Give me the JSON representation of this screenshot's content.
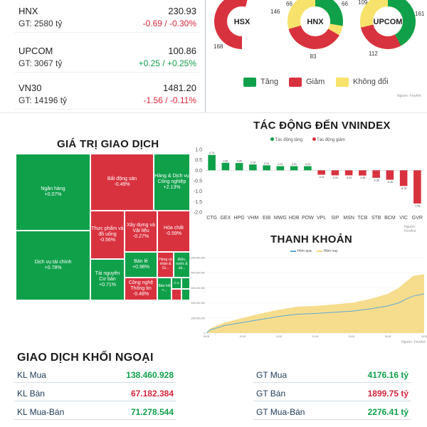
{
  "indices": [
    {
      "name": "HNX",
      "gt": "GT: 2580 tỷ",
      "value": "230.93",
      "change": "-0.69 / -0.30%",
      "dir": "down"
    },
    {
      "name": "UPCOM",
      "gt": "GT: 3067 tỷ",
      "value": "100.86",
      "change": "+0.25 / +0.25%",
      "dir": "up"
    },
    {
      "name": "VN30",
      "gt": "GT: 14196 tỷ",
      "value": "1481.20",
      "change": "-1.56 / -0.11%",
      "dir": "down"
    }
  ],
  "breadth": {
    "exchanges": [
      {
        "label": "HSX",
        "tang": "146",
        "giam": "168",
        "khong_doi": ""
      },
      {
        "label": "HNX",
        "tang": "66",
        "giam": "83",
        "khong_doi": "66"
      },
      {
        "label": "UPCOM",
        "tang": "161",
        "giam": "112",
        "khong_doi": "109"
      }
    ],
    "legend": [
      {
        "label": "Tăng",
        "color": "#10a04a"
      },
      {
        "label": "Giảm",
        "color": "#d9323f"
      },
      {
        "label": "Không đổi",
        "color": "#f7e36b"
      }
    ],
    "source": "Nguồn: FireAnt"
  },
  "impact": {
    "title": "TÁC ĐỘNG ĐẾN VNINDEX",
    "legend_up": "Tác động tăng",
    "legend_down": "Tác động giảm",
    "source": "Nguồn: FireAnt"
  },
  "treemap": {
    "title": "GIÁ TRỊ GIAO DỊCH",
    "cells": [
      {
        "name": "Ngân hàng",
        "change": "+0.07%"
      },
      {
        "name": "Dịch vụ tài chính",
        "change": "+0.78%"
      },
      {
        "name": "Bất động sản",
        "change": "-0.49%"
      },
      {
        "name": "Hàng & Dịch vụ Công nghiệp",
        "change": "+2.13%"
      },
      {
        "name": "Thực phẩm và đồ uống",
        "change": "-0.56%"
      },
      {
        "name": "Xây dựng và Vật liệu",
        "change": "-0.27%"
      },
      {
        "name": "Hóa chất",
        "change": "-0.59%"
      },
      {
        "name": "Tài nguyên Cơ bản",
        "change": "+0.71%"
      },
      {
        "name": "Bán lẻ",
        "change": "+0.98%"
      },
      {
        "name": "Hàng cá nhân & Gi...",
        "change": ""
      },
      {
        "name": "Điện, nước & xă...",
        "change": ""
      },
      {
        "name": "Công nghệ Thông tin",
        "change": "-0.48%"
      },
      {
        "name": "Bảo hiể",
        "change": "+..."
      },
      {
        "name": "Ô tô",
        "change": "+..."
      }
    ]
  },
  "liquidity": {
    "title": "THANH KHOẢN",
    "legend_prev": "Hôm qua",
    "legend_today": "Hôm nay",
    "source": "Nguồn: FireAnt"
  },
  "foreign": {
    "title": "GIAO DỊCH KHỐI NGOẠI",
    "rows_left": [
      {
        "label": "KL Mua",
        "value": "138.460.928",
        "color": "#10a04a"
      },
      {
        "label": "KL Bán",
        "value": "67.182.384",
        "color": "#d7263d"
      },
      {
        "label": "KL Mua-Bán",
        "value": "71.278.544",
        "color": "#10a04a"
      }
    ],
    "rows_right": [
      {
        "label": "GT Mua",
        "value": "4176.16 tỷ",
        "color": "#10a04a"
      },
      {
        "label": "GT Bán",
        "value": "1899.75 tỷ",
        "color": "#d7263d"
      },
      {
        "label": "GT Mua-Bán",
        "value": "2276.41 tỷ",
        "color": "#10a04a"
      }
    ]
  },
  "chart_data": [
    {
      "type": "bar",
      "title": "TÁC ĐỘNG ĐẾN VNINDEX",
      "categories": [
        "CTG",
        "GEX",
        "HPG",
        "VHM",
        "EIB",
        "MWG",
        "HDB",
        "POW",
        "VPL",
        "SIP",
        "MSN",
        "TCB",
        "STB",
        "BCM",
        "VIC",
        "GVR"
      ],
      "series": [
        {
          "name": "Tác động tăng/giảm",
          "values": [
            0.74,
            0.36,
            0.35,
            0.28,
            0.24,
            0.2,
            0.2,
            0.2,
            -0.21,
            -0.24,
            -0.24,
            -0.25,
            -0.36,
            -0.45,
            -0.75,
            -1.59
          ]
        }
      ],
      "ylim": [
        -2.0,
        1.0
      ],
      "yticks": [
        "1.0",
        "0.5",
        "0.0",
        "-0.5",
        "-1.0",
        "-1.5",
        "-2.0"
      ],
      "colors": {
        "up": "#10a04a",
        "down": "#d9323f"
      },
      "legend": "top-center",
      "grid": false
    },
    {
      "type": "area",
      "title": "THANH KHOẢN",
      "xticks": [
        "09:00",
        "10:00",
        "11:00",
        "12:00",
        "13:00",
        "14:00",
        "15:00"
      ],
      "yticks": [
        "1,000,000,000",
        "800,000,000",
        "600,000,000",
        "400,000,000",
        "200,000,000",
        "0"
      ],
      "x_hours": [
        9.0,
        9.1,
        9.3,
        9.5,
        10.0,
        10.5,
        11.0,
        11.5,
        12.0,
        13.0,
        13.5,
        14.0,
        14.3,
        14.5,
        14.7,
        15.0
      ],
      "series": [
        {
          "name": "Hôm nay",
          "values": [
            0,
            60000000,
            100000000,
            140000000,
            200000000,
            260000000,
            310000000,
            350000000,
            360000000,
            400000000,
            450000000,
            520000000,
            600000000,
            680000000,
            760000000,
            780000000
          ]
        },
        {
          "name": "Hôm qua",
          "values": [
            0,
            40000000,
            70000000,
            100000000,
            140000000,
            180000000,
            220000000,
            250000000,
            260000000,
            290000000,
            320000000,
            360000000,
            400000000,
            450000000,
            490000000,
            520000000
          ]
        }
      ],
      "ylim": [
        0,
        1000000000
      ],
      "colors": {
        "Hôm nay": "#f5d77a",
        "Hôm qua": "#5fa8d3"
      },
      "legend": "top-center"
    }
  ]
}
